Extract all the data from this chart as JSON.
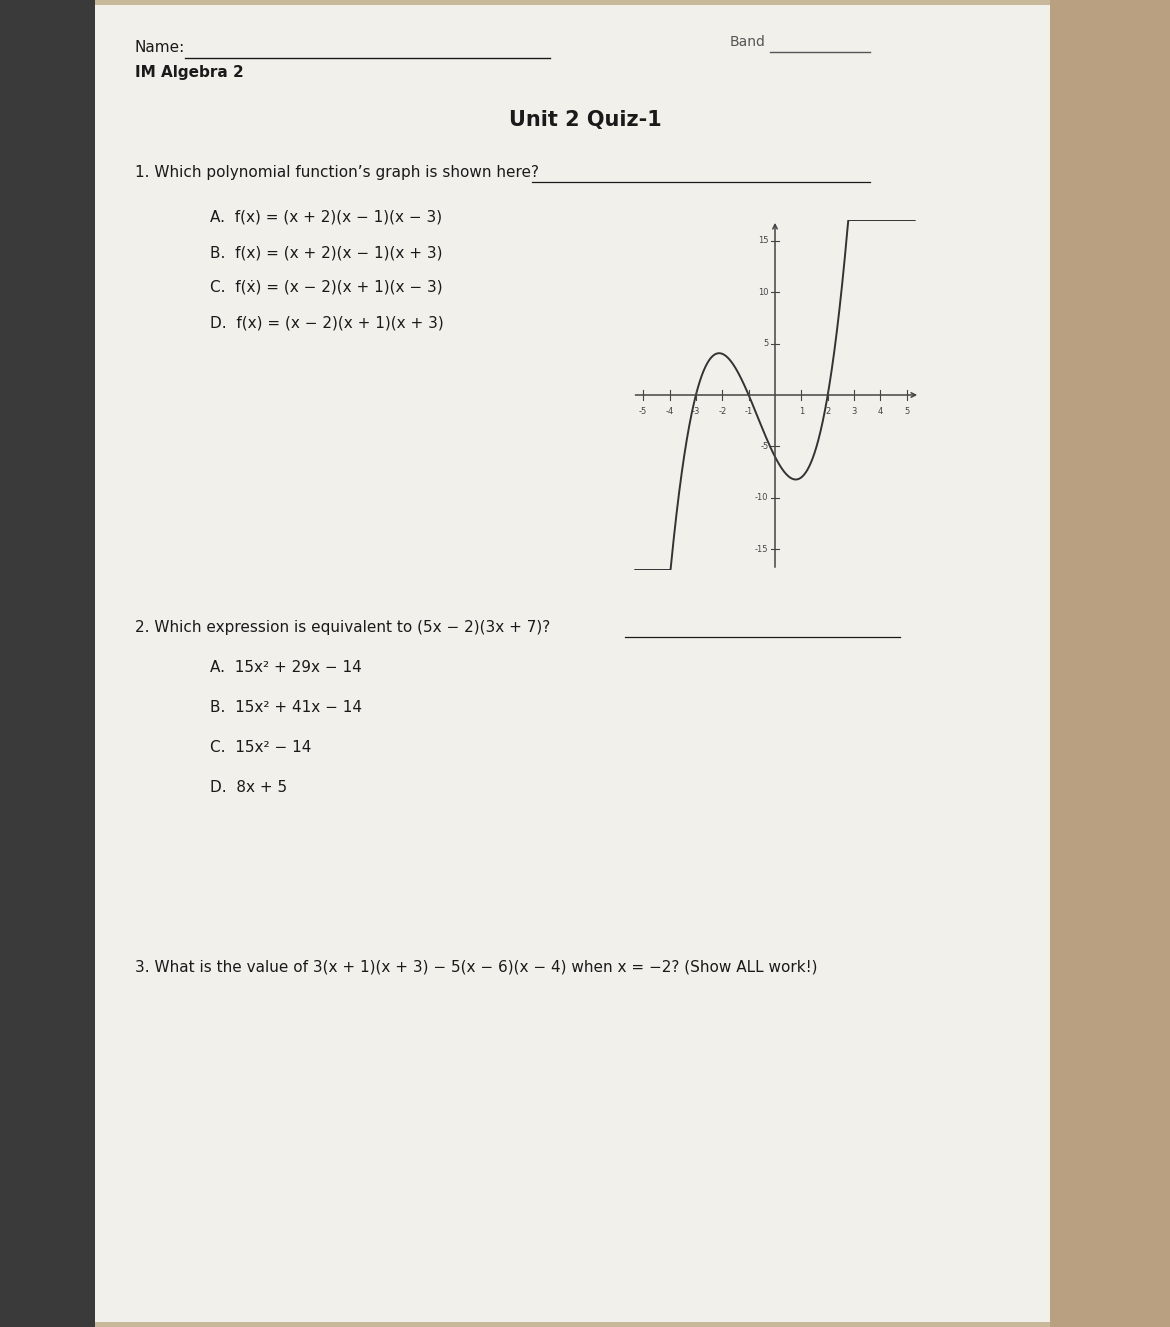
{
  "page_bg": "#c8b99a",
  "paper_bg": "#f2f0eb",
  "left_shadow_bg": "#3a3a3a",
  "text_color": "#1a1a1a",
  "name_label": "Name:",
  "band_label": "Band",
  "course_label": "IM Algebra 2",
  "title": "Unit 2 Quiz-1",
  "q1_text": "1. Which polynomial function’s graph is shown here?",
  "q1_choices": [
    "A.  f(x) = (x + 2)(x − 1)(x − 3)",
    "B.  f(x) = (x + 2)(x − 1)(x + 3)",
    "C.  f(ẋ) = (x − 2)(x + 1)(x − 3)",
    "D.  f(x) = (x − 2)(x + 1)(x + 3)"
  ],
  "q2_text": "2. Which expression is equivalent to (5x − 2)(3x + 7)?",
  "q2_choices": [
    "A.  15x² + 29x − 14",
    "B.  15x² + 41x − 14",
    "C.  15x² − 14",
    "D.  8x + 5"
  ],
  "q3_text": "3. What is the value of 3(x + 1)(x + 3) − 5(x − 6)(x − 4) when x = −2? (Show ALL work!)",
  "graph_xlim": [
    -5.5,
    5.5
  ],
  "graph_ylim": [
    -17,
    17
  ],
  "graph_xticks": [
    -5,
    -4,
    -3,
    -2,
    -1,
    0,
    1,
    2,
    3,
    4,
    5
  ],
  "graph_yticks": [
    -15,
    -10,
    -5,
    5,
    10,
    15
  ],
  "curve_color": "#333333",
  "axis_color": "#444444",
  "line_color": "#555555"
}
